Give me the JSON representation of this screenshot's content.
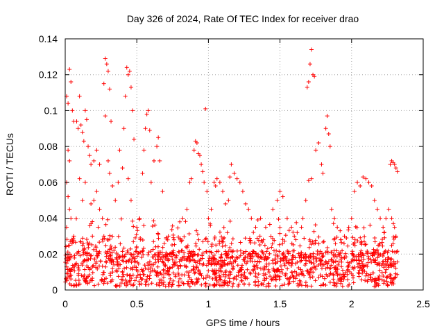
{
  "chart_data": {
    "type": "scatter",
    "title": "Day 326 of 2024, Rate Of TEC Index for receiver drao",
    "xlabel": "GPS time / hours",
    "ylabel": "ROTI / TECUs",
    "xlim": [
      0,
      2.5
    ],
    "ylim": [
      0,
      0.14
    ],
    "xticks": [
      0,
      0.5,
      1,
      1.5,
      2,
      2.5
    ],
    "xtick_labels": [
      "0",
      "0.5",
      "1",
      "1.5",
      "2",
      "2.5"
    ],
    "yticks": [
      0,
      0.02,
      0.04,
      0.06,
      0.08,
      0.1,
      0.12,
      0.14
    ],
    "ytick_labels": [
      "0",
      "0.02",
      "0.04",
      "0.06",
      "0.08",
      "0.1",
      "0.12",
      "0.14"
    ],
    "grid": true,
    "marker": "+",
    "color": "#ff0000",
    "series": [
      {
        "name": "ROTI",
        "points": [
          [
            0.01,
            0.108
          ],
          [
            0.02,
            0.104
          ],
          [
            0.03,
            0.123
          ],
          [
            0.04,
            0.116
          ],
          [
            0.05,
            0.1
          ],
          [
            0.06,
            0.094
          ],
          [
            0.02,
            0.078
          ],
          [
            0.03,
            0.072
          ],
          [
            0.01,
            0.06
          ],
          [
            0.02,
            0.052
          ],
          [
            0.03,
            0.045
          ],
          [
            0.04,
            0.04
          ],
          [
            0.01,
            0.035
          ],
          [
            0.06,
            0.03
          ],
          [
            0.08,
            0.094
          ],
          [
            0.09,
            0.09
          ],
          [
            0.1,
            0.108
          ],
          [
            0.11,
            0.092
          ],
          [
            0.12,
            0.088
          ],
          [
            0.13,
            0.083
          ],
          [
            0.14,
            0.1
          ],
          [
            0.15,
            0.095
          ],
          [
            0.16,
            0.08
          ],
          [
            0.17,
            0.075
          ],
          [
            0.18,
            0.07
          ],
          [
            0.2,
            0.072
          ],
          [
            0.22,
            0.078
          ],
          [
            0.24,
            0.07
          ],
          [
            0.1,
            0.062
          ],
          [
            0.12,
            0.05
          ],
          [
            0.14,
            0.06
          ],
          [
            0.18,
            0.048
          ],
          [
            0.2,
            0.05
          ],
          [
            0.22,
            0.055
          ],
          [
            0.24,
            0.045
          ],
          [
            0.26,
            0.04
          ],
          [
            0.19,
            0.03
          ],
          [
            0.23,
            0.035
          ],
          [
            0.27,
            0.03
          ],
          [
            0.27,
            0.115
          ],
          [
            0.28,
            0.129
          ],
          [
            0.29,
            0.126
          ],
          [
            0.3,
            0.122
          ],
          [
            0.31,
            0.112
          ],
          [
            0.32,
            0.094
          ],
          [
            0.28,
            0.097
          ],
          [
            0.3,
            0.072
          ],
          [
            0.31,
            0.065
          ],
          [
            0.33,
            0.058
          ],
          [
            0.35,
            0.05
          ],
          [
            0.37,
            0.06
          ],
          [
            0.38,
            0.078
          ],
          [
            0.4,
            0.068
          ],
          [
            0.41,
            0.09
          ],
          [
            0.42,
            0.108
          ],
          [
            0.43,
            0.124
          ],
          [
            0.44,
            0.12
          ],
          [
            0.45,
            0.122
          ],
          [
            0.46,
            0.113
          ],
          [
            0.47,
            0.1
          ],
          [
            0.48,
            0.084
          ],
          [
            0.44,
            0.062
          ],
          [
            0.46,
            0.05
          ],
          [
            0.5,
            0.035
          ],
          [
            0.52,
            0.04
          ],
          [
            0.54,
            0.065
          ],
          [
            0.55,
            0.078
          ],
          [
            0.56,
            0.09
          ],
          [
            0.57,
            0.098
          ],
          [
            0.58,
            0.1
          ],
          [
            0.59,
            0.089
          ],
          [
            0.6,
            0.06
          ],
          [
            0.62,
            0.072
          ],
          [
            0.64,
            0.08
          ],
          [
            0.65,
            0.085
          ],
          [
            0.66,
            0.072
          ],
          [
            0.68,
            0.055
          ],
          [
            0.72,
            0.03
          ],
          [
            0.76,
            0.028
          ],
          [
            0.8,
            0.038
          ],
          [
            0.82,
            0.04
          ],
          [
            0.85,
            0.045
          ],
          [
            0.87,
            0.06
          ],
          [
            0.88,
            0.062
          ],
          [
            0.9,
            0.078
          ],
          [
            0.91,
            0.083
          ],
          [
            0.92,
            0.082
          ],
          [
            0.93,
            0.076
          ],
          [
            0.94,
            0.075
          ],
          [
            0.95,
            0.07
          ],
          [
            0.96,
            0.066
          ],
          [
            0.97,
            0.06
          ],
          [
            0.98,
            0.101
          ],
          [
            0.99,
            0.055
          ],
          [
            1.0,
            0.04
          ],
          [
            1.02,
            0.045
          ],
          [
            1.04,
            0.06
          ],
          [
            1.05,
            0.058
          ],
          [
            1.06,
            0.062
          ],
          [
            1.08,
            0.06
          ],
          [
            1.1,
            0.055
          ],
          [
            1.12,
            0.048
          ],
          [
            1.14,
            0.05
          ],
          [
            1.15,
            0.063
          ],
          [
            1.16,
            0.07
          ],
          [
            1.18,
            0.065
          ],
          [
            1.2,
            0.062
          ],
          [
            1.22,
            0.06
          ],
          [
            1.24,
            0.055
          ],
          [
            1.26,
            0.048
          ],
          [
            1.28,
            0.045
          ],
          [
            1.3,
            0.04
          ],
          [
            1.33,
            0.035
          ],
          [
            1.36,
            0.03
          ],
          [
            1.4,
            0.035
          ],
          [
            1.45,
            0.045
          ],
          [
            1.48,
            0.05
          ],
          [
            1.5,
            0.055
          ],
          [
            1.52,
            0.052
          ],
          [
            1.55,
            0.04
          ],
          [
            1.58,
            0.035
          ],
          [
            1.6,
            0.03
          ],
          [
            1.62,
            0.032
          ],
          [
            1.65,
            0.035
          ],
          [
            1.66,
            0.04
          ],
          [
            1.68,
            0.05
          ],
          [
            1.69,
            0.113
          ],
          [
            1.7,
            0.116
          ],
          [
            1.71,
            0.126
          ],
          [
            1.72,
            0.134
          ],
          [
            1.73,
            0.12
          ],
          [
            1.74,
            0.119
          ],
          [
            1.7,
            0.061
          ],
          [
            1.72,
            0.062
          ],
          [
            1.75,
            0.078
          ],
          [
            1.77,
            0.082
          ],
          [
            1.79,
            0.07
          ],
          [
            1.8,
            0.065
          ],
          [
            1.82,
            0.09
          ],
          [
            1.83,
            0.097
          ],
          [
            1.84,
            0.087
          ],
          [
            1.85,
            0.08
          ],
          [
            1.86,
            0.045
          ],
          [
            1.88,
            0.04
          ],
          [
            1.9,
            0.035
          ],
          [
            1.92,
            0.033
          ],
          [
            1.95,
            0.03
          ],
          [
            1.98,
            0.035
          ],
          [
            2.0,
            0.04
          ],
          [
            2.02,
            0.055
          ],
          [
            2.04,
            0.06
          ],
          [
            2.06,
            0.058
          ],
          [
            2.08,
            0.063
          ],
          [
            2.1,
            0.062
          ],
          [
            2.12,
            0.06
          ],
          [
            2.14,
            0.058
          ],
          [
            2.16,
            0.05
          ],
          [
            2.18,
            0.045
          ],
          [
            2.2,
            0.04
          ],
          [
            2.22,
            0.035
          ],
          [
            2.24,
            0.04
          ],
          [
            2.26,
            0.045
          ],
          [
            2.27,
            0.07
          ],
          [
            2.28,
            0.072
          ],
          [
            2.29,
            0.071
          ],
          [
            2.3,
            0.07
          ],
          [
            2.31,
            0.068
          ],
          [
            2.32,
            0.066
          ],
          [
            2.28,
            0.04
          ],
          [
            2.3,
            0.035
          ],
          [
            2.31,
            0.03
          ]
        ]
      }
    ]
  }
}
